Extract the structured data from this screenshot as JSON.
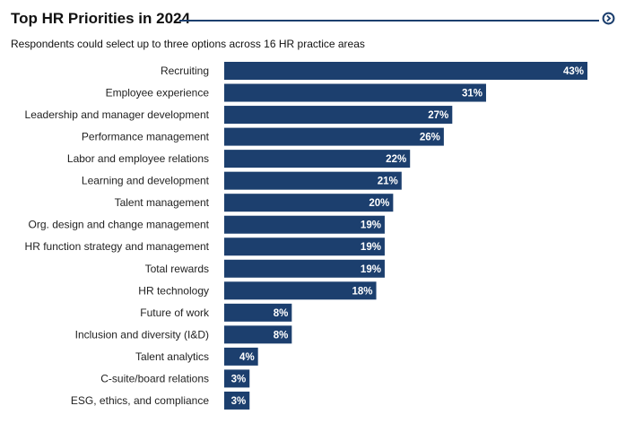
{
  "header": {
    "title": "Top HR Priorities in 2024",
    "subtitle": "Respondents could select up to three options across 16 HR practice areas"
  },
  "colors": {
    "bar": "#1c3f6e",
    "accent": "#1c3f6e",
    "label": "#222222",
    "value_text": "#ffffff"
  },
  "chart_data": {
    "type": "bar",
    "orientation": "horizontal",
    "title": "Top HR Priorities in 2024",
    "subtitle": "Respondents could select up to three options across 16 HR practice areas",
    "value_suffix": "%",
    "xlim": [
      0,
      43
    ],
    "categories": [
      "Recruiting",
      "Employee experience",
      "Leadership and manager development",
      "Performance management",
      "Labor and employee relations",
      "Learning and development",
      "Talent management",
      "Org. design and change management",
      "HR function strategy and management",
      "Total rewards",
      "HR technology",
      "Future of work",
      "Inclusion and diversity (I&D)",
      "Talent analytics",
      "C-suite/board relations",
      "ESG, ethics, and compliance"
    ],
    "values": [
      43,
      31,
      27,
      26,
      22,
      21,
      20,
      19,
      19,
      19,
      18,
      8,
      8,
      4,
      3,
      3
    ]
  }
}
